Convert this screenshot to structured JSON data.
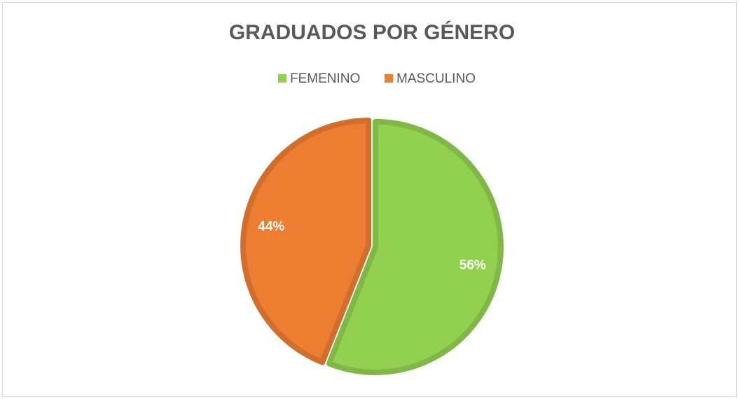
{
  "chart_data": {
    "type": "pie",
    "title": "GRADUADOS POR GÉNERO",
    "categories": [
      "FEMENINO",
      "MASCULINO"
    ],
    "values": [
      56,
      44
    ],
    "value_labels": [
      "56%",
      "44%"
    ],
    "colors": [
      "#92d050",
      "#ed7d31"
    ],
    "legend": "top"
  }
}
